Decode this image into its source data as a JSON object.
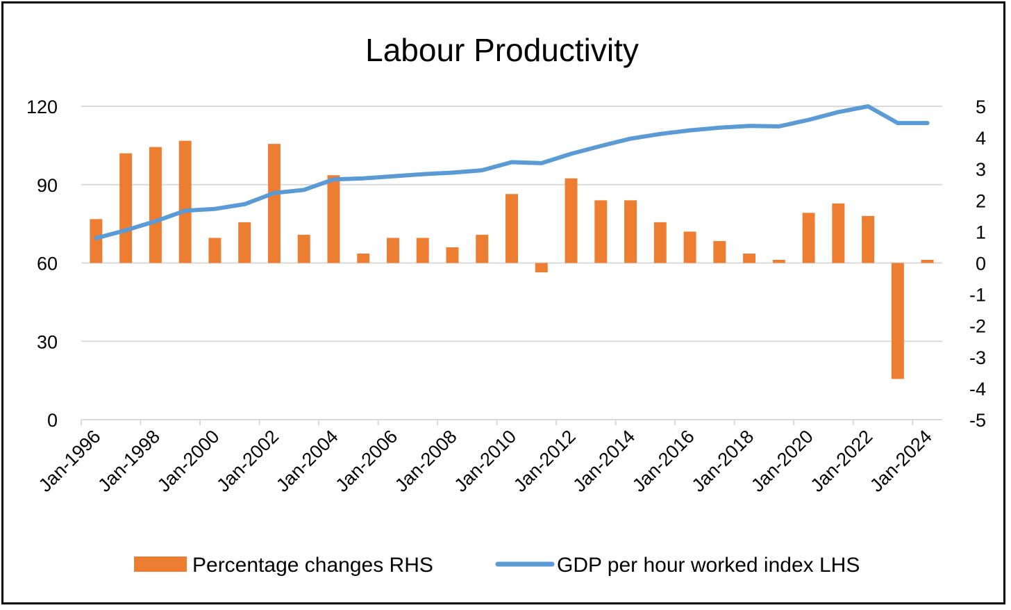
{
  "chart_data": {
    "type": "bar+line",
    "title": "Labour Productivity",
    "x_tick_labels": [
      "Jan-1996",
      "Jan-1998",
      "Jan-2000",
      "Jan-2002",
      "Jan-2004",
      "Jan-2006",
      "Jan-2008",
      "Jan-2010",
      "Jan-2012",
      "Jan-2014",
      "Jan-2016",
      "Jan-2018",
      "Jan-2020",
      "Jan-2022",
      "Jan-2024"
    ],
    "categories": [
      "1996",
      "1997",
      "1998",
      "1999",
      "2000",
      "2001",
      "2002",
      "2003",
      "2004",
      "2005",
      "2006",
      "2007",
      "2008",
      "2009",
      "2010",
      "2011",
      "2012",
      "2013",
      "2014",
      "2015",
      "2016",
      "2017",
      "2018",
      "2019",
      "2020",
      "2021",
      "2022",
      "2023",
      "2024"
    ],
    "y_left": {
      "min": 0,
      "max": 120,
      "ticks": [
        0,
        30,
        60,
        90,
        120
      ]
    },
    "y_right": {
      "min": -5,
      "max": 5,
      "ticks": [
        -5,
        -4,
        -3,
        -2,
        -1,
        0,
        1,
        2,
        3,
        4,
        5
      ]
    },
    "grid": true,
    "legend_position": "bottom",
    "series": [
      {
        "name": "Percentage changes RHS",
        "type": "bar",
        "axis": "right",
        "color": "#ed7d31",
        "values": [
          1.4,
          3.5,
          3.7,
          3.9,
          0.8,
          1.3,
          3.8,
          0.9,
          2.8,
          0.3,
          0.8,
          0.8,
          0.5,
          0.9,
          2.2,
          -0.3,
          2.7,
          2.0,
          2.0,
          1.3,
          1.0,
          0.7,
          0.3,
          0.1,
          1.6,
          1.9,
          1.5,
          -3.7,
          0.1
        ]
      },
      {
        "name": "GDP per hour worked index LHS",
        "type": "line",
        "axis": "left",
        "color": "#5b9bd5",
        "values": [
          69.5,
          72.5,
          76.0,
          80.0,
          80.7,
          82.5,
          86.8,
          88.0,
          92.0,
          92.4,
          93.2,
          94.0,
          94.6,
          95.5,
          98.6,
          98.2,
          101.8,
          104.8,
          107.6,
          109.4,
          110.8,
          111.8,
          112.5,
          112.3,
          114.8,
          117.8,
          120.0,
          113.6,
          113.6
        ]
      }
    ]
  }
}
